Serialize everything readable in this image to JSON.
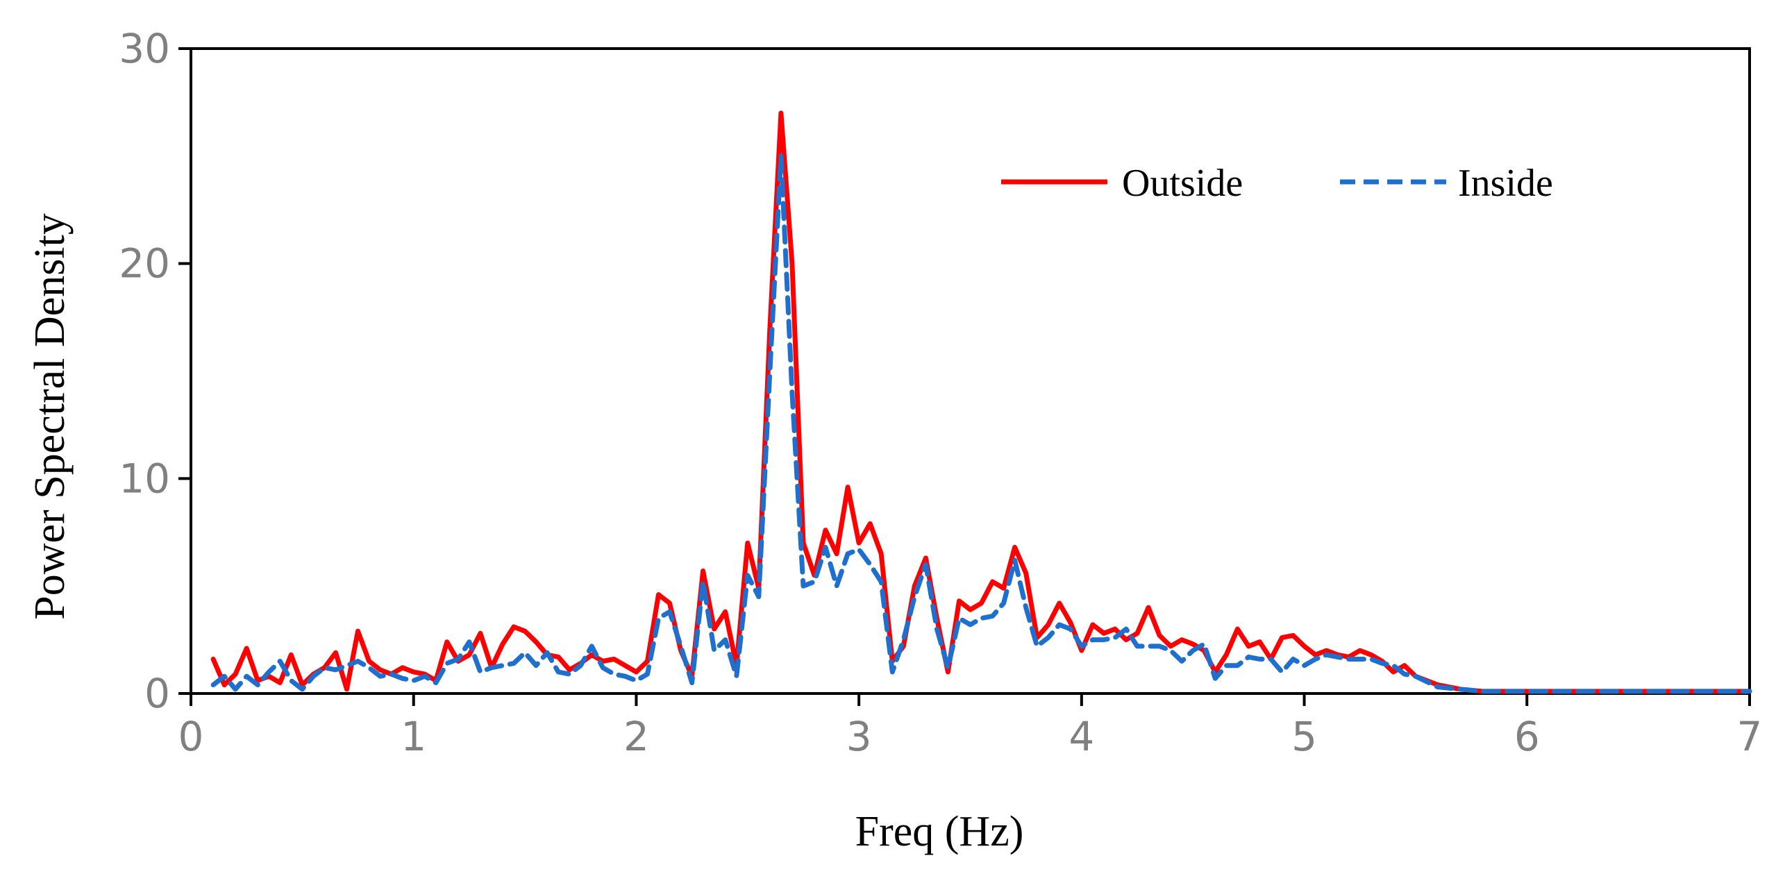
{
  "chart_data": {
    "type": "line",
    "title": "",
    "xlabel": "Freq (Hz)",
    "ylabel": "Power Spectral Density",
    "xlim": [
      0,
      7
    ],
    "ylim": [
      0,
      30
    ],
    "xticks": [
      "0",
      "1",
      "2",
      "3",
      "4",
      "5",
      "6",
      "7"
    ],
    "yticks": [
      "0",
      "10",
      "20",
      "30"
    ],
    "grid": false,
    "legend_position": "top-right",
    "series": [
      {
        "name": "Outside",
        "color": "#ff0000",
        "style": "solid",
        "points": [
          [
            0.1,
            1.6
          ],
          [
            0.15,
            0.4
          ],
          [
            0.2,
            0.9
          ],
          [
            0.25,
            2.1
          ],
          [
            0.3,
            0.6
          ],
          [
            0.35,
            0.8
          ],
          [
            0.4,
            0.5
          ],
          [
            0.45,
            1.8
          ],
          [
            0.5,
            0.4
          ],
          [
            0.55,
            0.9
          ],
          [
            0.6,
            1.2
          ],
          [
            0.65,
            1.9
          ],
          [
            0.7,
            0.2
          ],
          [
            0.75,
            2.9
          ],
          [
            0.8,
            1.5
          ],
          [
            0.85,
            1.1
          ],
          [
            0.9,
            0.9
          ],
          [
            0.95,
            1.2
          ],
          [
            1.0,
            1.0
          ],
          [
            1.05,
            0.9
          ],
          [
            1.1,
            0.6
          ],
          [
            1.15,
            2.4
          ],
          [
            1.2,
            1.5
          ],
          [
            1.25,
            1.8
          ],
          [
            1.3,
            2.8
          ],
          [
            1.35,
            1.2
          ],
          [
            1.4,
            2.3
          ],
          [
            1.45,
            3.1
          ],
          [
            1.5,
            2.9
          ],
          [
            1.55,
            2.4
          ],
          [
            1.6,
            1.8
          ],
          [
            1.65,
            1.7
          ],
          [
            1.7,
            1.1
          ],
          [
            1.75,
            1.4
          ],
          [
            1.8,
            1.8
          ],
          [
            1.85,
            1.5
          ],
          [
            1.9,
            1.6
          ],
          [
            1.95,
            1.3
          ],
          [
            2.0,
            1.0
          ],
          [
            2.05,
            1.5
          ],
          [
            2.1,
            4.6
          ],
          [
            2.15,
            4.2
          ],
          [
            2.2,
            2.0
          ],
          [
            2.25,
            0.8
          ],
          [
            2.3,
            5.7
          ],
          [
            2.35,
            3.0
          ],
          [
            2.4,
            3.8
          ],
          [
            2.45,
            1.3
          ],
          [
            2.5,
            7.0
          ],
          [
            2.55,
            4.9
          ],
          [
            2.6,
            17.0
          ],
          [
            2.65,
            27.0
          ],
          [
            2.7,
            20.0
          ],
          [
            2.75,
            7.0
          ],
          [
            2.8,
            5.5
          ],
          [
            2.85,
            7.6
          ],
          [
            2.9,
            6.5
          ],
          [
            2.95,
            9.6
          ],
          [
            3.0,
            7.0
          ],
          [
            3.05,
            7.9
          ],
          [
            3.1,
            6.5
          ],
          [
            3.15,
            1.5
          ],
          [
            3.2,
            2.2
          ],
          [
            3.25,
            5.0
          ],
          [
            3.3,
            6.3
          ],
          [
            3.35,
            3.5
          ],
          [
            3.4,
            1.0
          ],
          [
            3.45,
            4.3
          ],
          [
            3.5,
            3.9
          ],
          [
            3.55,
            4.2
          ],
          [
            3.6,
            5.2
          ],
          [
            3.65,
            4.9
          ],
          [
            3.7,
            6.8
          ],
          [
            3.75,
            5.6
          ],
          [
            3.8,
            2.6
          ],
          [
            3.85,
            3.2
          ],
          [
            3.9,
            4.2
          ],
          [
            3.95,
            3.3
          ],
          [
            4.0,
            2.0
          ],
          [
            4.05,
            3.2
          ],
          [
            4.1,
            2.8
          ],
          [
            4.15,
            3.0
          ],
          [
            4.2,
            2.5
          ],
          [
            4.25,
            2.8
          ],
          [
            4.3,
            4.0
          ],
          [
            4.35,
            2.7
          ],
          [
            4.4,
            2.2
          ],
          [
            4.45,
            2.5
          ],
          [
            4.5,
            2.3
          ],
          [
            4.55,
            2.0
          ],
          [
            4.6,
            1.0
          ],
          [
            4.65,
            1.8
          ],
          [
            4.7,
            3.0
          ],
          [
            4.75,
            2.2
          ],
          [
            4.8,
            2.4
          ],
          [
            4.85,
            1.6
          ],
          [
            4.9,
            2.6
          ],
          [
            4.95,
            2.7
          ],
          [
            5.0,
            2.2
          ],
          [
            5.05,
            1.8
          ],
          [
            5.1,
            2.0
          ],
          [
            5.15,
            1.8
          ],
          [
            5.2,
            1.7
          ],
          [
            5.25,
            2.0
          ],
          [
            5.3,
            1.8
          ],
          [
            5.35,
            1.5
          ],
          [
            5.4,
            1.0
          ],
          [
            5.45,
            1.3
          ],
          [
            5.5,
            0.8
          ],
          [
            5.6,
            0.4
          ],
          [
            5.7,
            0.2
          ],
          [
            5.8,
            0.1
          ],
          [
            6.0,
            0.1
          ],
          [
            6.5,
            0.1
          ],
          [
            7.0,
            0.1
          ]
        ]
      },
      {
        "name": "Inside",
        "color": "#1f6fce",
        "style": "dashed",
        "points": [
          [
            0.1,
            0.4
          ],
          [
            0.15,
            0.8
          ],
          [
            0.2,
            0.2
          ],
          [
            0.25,
            0.8
          ],
          [
            0.3,
            0.4
          ],
          [
            0.35,
            1.0
          ],
          [
            0.4,
            1.5
          ],
          [
            0.45,
            0.6
          ],
          [
            0.5,
            0.2
          ],
          [
            0.55,
            0.8
          ],
          [
            0.6,
            1.2
          ],
          [
            0.65,
            1.1
          ],
          [
            0.7,
            1.3
          ],
          [
            0.75,
            1.5
          ],
          [
            0.8,
            1.2
          ],
          [
            0.85,
            0.8
          ],
          [
            0.9,
            0.9
          ],
          [
            0.95,
            0.7
          ],
          [
            1.0,
            0.6
          ],
          [
            1.05,
            0.8
          ],
          [
            1.1,
            0.5
          ],
          [
            1.15,
            1.4
          ],
          [
            1.2,
            1.6
          ],
          [
            1.25,
            2.4
          ],
          [
            1.3,
            1.0
          ],
          [
            1.35,
            1.2
          ],
          [
            1.4,
            1.3
          ],
          [
            1.45,
            1.4
          ],
          [
            1.5,
            1.9
          ],
          [
            1.55,
            1.3
          ],
          [
            1.6,
            1.9
          ],
          [
            1.65,
            1.0
          ],
          [
            1.7,
            0.9
          ],
          [
            1.75,
            1.3
          ],
          [
            1.8,
            2.2
          ],
          [
            1.85,
            1.2
          ],
          [
            1.9,
            0.9
          ],
          [
            1.95,
            0.8
          ],
          [
            2.0,
            0.6
          ],
          [
            2.05,
            0.9
          ],
          [
            2.1,
            3.5
          ],
          [
            2.15,
            3.8
          ],
          [
            2.2,
            2.2
          ],
          [
            2.25,
            0.5
          ],
          [
            2.3,
            5.2
          ],
          [
            2.35,
            2.0
          ],
          [
            2.4,
            2.5
          ],
          [
            2.45,
            0.8
          ],
          [
            2.5,
            5.5
          ],
          [
            2.55,
            4.5
          ],
          [
            2.6,
            15.0
          ],
          [
            2.65,
            25.0
          ],
          [
            2.7,
            14.0
          ],
          [
            2.75,
            5.0
          ],
          [
            2.8,
            5.2
          ],
          [
            2.85,
            6.8
          ],
          [
            2.9,
            5.0
          ],
          [
            2.95,
            6.5
          ],
          [
            3.0,
            6.7
          ],
          [
            3.05,
            6.0
          ],
          [
            3.1,
            5.2
          ],
          [
            3.15,
            1.0
          ],
          [
            3.2,
            2.5
          ],
          [
            3.25,
            4.5
          ],
          [
            3.3,
            6.0
          ],
          [
            3.35,
            3.0
          ],
          [
            3.4,
            1.2
          ],
          [
            3.45,
            3.5
          ],
          [
            3.5,
            3.2
          ],
          [
            3.55,
            3.5
          ],
          [
            3.6,
            3.6
          ],
          [
            3.65,
            4.2
          ],
          [
            3.7,
            6.2
          ],
          [
            3.75,
            4.0
          ],
          [
            3.8,
            2.2
          ],
          [
            3.85,
            2.6
          ],
          [
            3.9,
            3.2
          ],
          [
            3.95,
            3.0
          ],
          [
            4.0,
            2.2
          ],
          [
            4.05,
            2.5
          ],
          [
            4.1,
            2.5
          ],
          [
            4.15,
            2.6
          ],
          [
            4.2,
            3.0
          ],
          [
            4.25,
            2.2
          ],
          [
            4.3,
            2.2
          ],
          [
            4.35,
            2.2
          ],
          [
            4.4,
            2.0
          ],
          [
            4.45,
            1.5
          ],
          [
            4.5,
            2.0
          ],
          [
            4.55,
            2.3
          ],
          [
            4.6,
            0.7
          ],
          [
            4.65,
            1.3
          ],
          [
            4.7,
            1.3
          ],
          [
            4.75,
            1.7
          ],
          [
            4.8,
            1.6
          ],
          [
            4.85,
            1.6
          ],
          [
            4.9,
            1.0
          ],
          [
            4.95,
            1.6
          ],
          [
            5.0,
            1.3
          ],
          [
            5.05,
            1.6
          ],
          [
            5.1,
            1.8
          ],
          [
            5.15,
            1.7
          ],
          [
            5.2,
            1.6
          ],
          [
            5.25,
            1.6
          ],
          [
            5.3,
            1.6
          ],
          [
            5.35,
            1.4
          ],
          [
            5.4,
            1.3
          ],
          [
            5.45,
            0.9
          ],
          [
            5.5,
            0.8
          ],
          [
            5.6,
            0.3
          ],
          [
            5.7,
            0.2
          ],
          [
            5.8,
            0.1
          ],
          [
            6.0,
            0.1
          ],
          [
            6.5,
            0.1
          ],
          [
            7.0,
            0.1
          ]
        ]
      }
    ]
  }
}
